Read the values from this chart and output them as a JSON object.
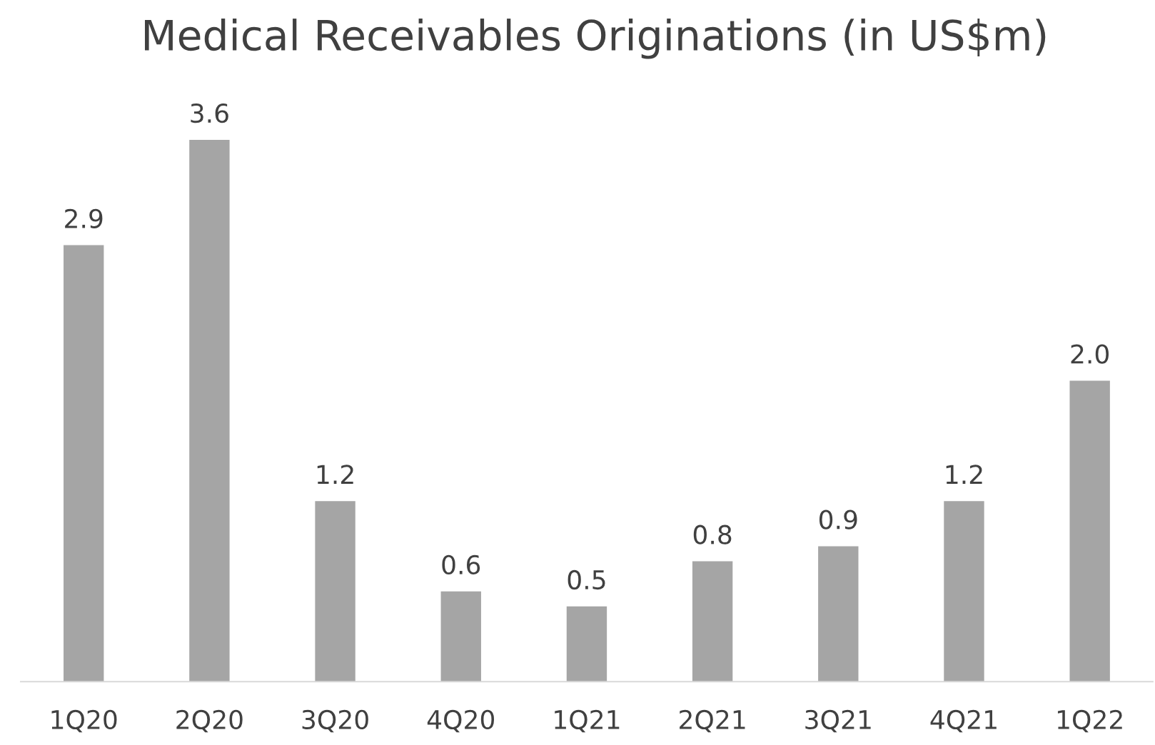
{
  "chart_data": {
    "type": "bar",
    "title": "Medical Receivables Originations (in US$m)",
    "categories": [
      "1Q20",
      "2Q20",
      "3Q20",
      "4Q20",
      "1Q21",
      "2Q21",
      "3Q21",
      "4Q21",
      "1Q22"
    ],
    "values": [
      2.9,
      3.6,
      1.2,
      0.6,
      0.5,
      0.8,
      0.9,
      1.2,
      2.0
    ],
    "value_labels": [
      "2.9",
      "3.6",
      "1.2",
      "0.6",
      "0.5",
      "0.8",
      "0.9",
      "1.2",
      "2.0"
    ],
    "color": "#a5a5a5",
    "grid": false,
    "legend": false
  }
}
